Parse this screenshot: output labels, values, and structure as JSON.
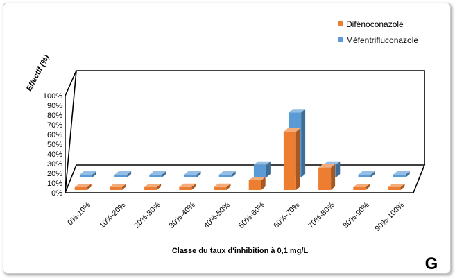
{
  "chart_data": {
    "type": "bar",
    "title": "",
    "panel_label": "G",
    "xlabel": "Classe du taux d'inhibition  à 0,1 mg/L",
    "ylabel": "Effectif (%)",
    "ylim": [
      0,
      100
    ],
    "yticks": [
      "0%",
      "10%",
      "20%",
      "30%",
      "40%",
      "50%",
      "60%",
      "70%",
      "80%",
      "90%",
      "100%"
    ],
    "categories": [
      "0%-10%",
      "10%-20%",
      "20%-30%",
      "30%-40%",
      "40%-50%",
      "50%-60%",
      "60%-70%",
      "70%-80%",
      "80%-90%",
      "90%-100%"
    ],
    "series": [
      {
        "name": "Difénoconazole",
        "color": "#ED7D31",
        "values": [
          0,
          0,
          0,
          3,
          3,
          10,
          60,
          23,
          0,
          0
        ]
      },
      {
        "name": "Méfentrifluconazole",
        "color": "#5B9BD5",
        "values": [
          0,
          0,
          0,
          0,
          0,
          13,
          67,
          13,
          0,
          0
        ]
      }
    ],
    "legend_position": "top-right",
    "grid": false,
    "style": "3d-clustered-depth"
  }
}
